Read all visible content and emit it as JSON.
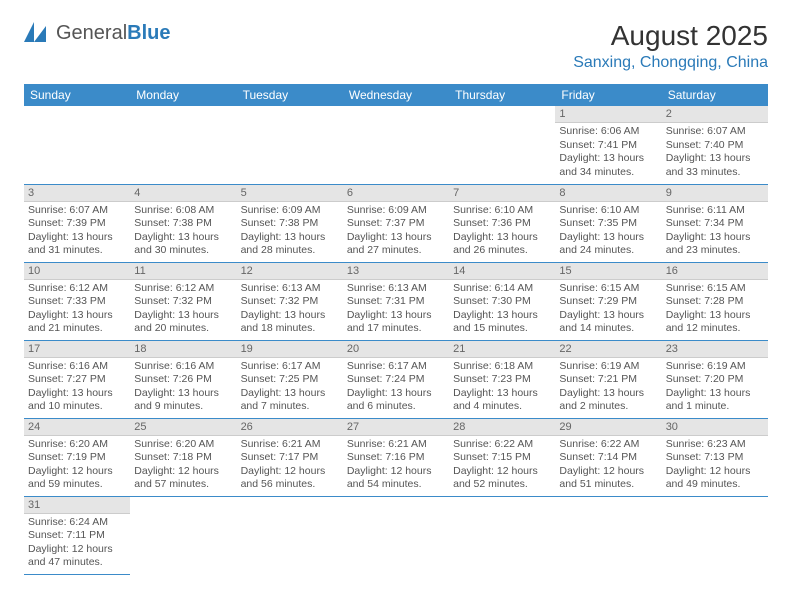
{
  "brand": {
    "general": "General",
    "blue": "Blue"
  },
  "header": {
    "title": "August 2025",
    "location": "Sanxing, Chongqing, China"
  },
  "colors": {
    "header_bg": "#3b8bc9",
    "header_text": "#ffffff",
    "daynum_bg": "#e5e5e5",
    "divider": "#3b8bc9",
    "location_color": "#2a7ab8"
  },
  "weekdays": [
    "Sunday",
    "Monday",
    "Tuesday",
    "Wednesday",
    "Thursday",
    "Friday",
    "Saturday"
  ],
  "weeks": [
    [
      null,
      null,
      null,
      null,
      null,
      {
        "n": "1",
        "sr": "Sunrise: 6:06 AM",
        "ss": "Sunset: 7:41 PM",
        "dl": "Daylight: 13 hours and 34 minutes."
      },
      {
        "n": "2",
        "sr": "Sunrise: 6:07 AM",
        "ss": "Sunset: 7:40 PM",
        "dl": "Daylight: 13 hours and 33 minutes."
      }
    ],
    [
      {
        "n": "3",
        "sr": "Sunrise: 6:07 AM",
        "ss": "Sunset: 7:39 PM",
        "dl": "Daylight: 13 hours and 31 minutes."
      },
      {
        "n": "4",
        "sr": "Sunrise: 6:08 AM",
        "ss": "Sunset: 7:38 PM",
        "dl": "Daylight: 13 hours and 30 minutes."
      },
      {
        "n": "5",
        "sr": "Sunrise: 6:09 AM",
        "ss": "Sunset: 7:38 PM",
        "dl": "Daylight: 13 hours and 28 minutes."
      },
      {
        "n": "6",
        "sr": "Sunrise: 6:09 AM",
        "ss": "Sunset: 7:37 PM",
        "dl": "Daylight: 13 hours and 27 minutes."
      },
      {
        "n": "7",
        "sr": "Sunrise: 6:10 AM",
        "ss": "Sunset: 7:36 PM",
        "dl": "Daylight: 13 hours and 26 minutes."
      },
      {
        "n": "8",
        "sr": "Sunrise: 6:10 AM",
        "ss": "Sunset: 7:35 PM",
        "dl": "Daylight: 13 hours and 24 minutes."
      },
      {
        "n": "9",
        "sr": "Sunrise: 6:11 AM",
        "ss": "Sunset: 7:34 PM",
        "dl": "Daylight: 13 hours and 23 minutes."
      }
    ],
    [
      {
        "n": "10",
        "sr": "Sunrise: 6:12 AM",
        "ss": "Sunset: 7:33 PM",
        "dl": "Daylight: 13 hours and 21 minutes."
      },
      {
        "n": "11",
        "sr": "Sunrise: 6:12 AM",
        "ss": "Sunset: 7:32 PM",
        "dl": "Daylight: 13 hours and 20 minutes."
      },
      {
        "n": "12",
        "sr": "Sunrise: 6:13 AM",
        "ss": "Sunset: 7:32 PM",
        "dl": "Daylight: 13 hours and 18 minutes."
      },
      {
        "n": "13",
        "sr": "Sunrise: 6:13 AM",
        "ss": "Sunset: 7:31 PM",
        "dl": "Daylight: 13 hours and 17 minutes."
      },
      {
        "n": "14",
        "sr": "Sunrise: 6:14 AM",
        "ss": "Sunset: 7:30 PM",
        "dl": "Daylight: 13 hours and 15 minutes."
      },
      {
        "n": "15",
        "sr": "Sunrise: 6:15 AM",
        "ss": "Sunset: 7:29 PM",
        "dl": "Daylight: 13 hours and 14 minutes."
      },
      {
        "n": "16",
        "sr": "Sunrise: 6:15 AM",
        "ss": "Sunset: 7:28 PM",
        "dl": "Daylight: 13 hours and 12 minutes."
      }
    ],
    [
      {
        "n": "17",
        "sr": "Sunrise: 6:16 AM",
        "ss": "Sunset: 7:27 PM",
        "dl": "Daylight: 13 hours and 10 minutes."
      },
      {
        "n": "18",
        "sr": "Sunrise: 6:16 AM",
        "ss": "Sunset: 7:26 PM",
        "dl": "Daylight: 13 hours and 9 minutes."
      },
      {
        "n": "19",
        "sr": "Sunrise: 6:17 AM",
        "ss": "Sunset: 7:25 PM",
        "dl": "Daylight: 13 hours and 7 minutes."
      },
      {
        "n": "20",
        "sr": "Sunrise: 6:17 AM",
        "ss": "Sunset: 7:24 PM",
        "dl": "Daylight: 13 hours and 6 minutes."
      },
      {
        "n": "21",
        "sr": "Sunrise: 6:18 AM",
        "ss": "Sunset: 7:23 PM",
        "dl": "Daylight: 13 hours and 4 minutes."
      },
      {
        "n": "22",
        "sr": "Sunrise: 6:19 AM",
        "ss": "Sunset: 7:21 PM",
        "dl": "Daylight: 13 hours and 2 minutes."
      },
      {
        "n": "23",
        "sr": "Sunrise: 6:19 AM",
        "ss": "Sunset: 7:20 PM",
        "dl": "Daylight: 13 hours and 1 minute."
      }
    ],
    [
      {
        "n": "24",
        "sr": "Sunrise: 6:20 AM",
        "ss": "Sunset: 7:19 PM",
        "dl": "Daylight: 12 hours and 59 minutes."
      },
      {
        "n": "25",
        "sr": "Sunrise: 6:20 AM",
        "ss": "Sunset: 7:18 PM",
        "dl": "Daylight: 12 hours and 57 minutes."
      },
      {
        "n": "26",
        "sr": "Sunrise: 6:21 AM",
        "ss": "Sunset: 7:17 PM",
        "dl": "Daylight: 12 hours and 56 minutes."
      },
      {
        "n": "27",
        "sr": "Sunrise: 6:21 AM",
        "ss": "Sunset: 7:16 PM",
        "dl": "Daylight: 12 hours and 54 minutes."
      },
      {
        "n": "28",
        "sr": "Sunrise: 6:22 AM",
        "ss": "Sunset: 7:15 PM",
        "dl": "Daylight: 12 hours and 52 minutes."
      },
      {
        "n": "29",
        "sr": "Sunrise: 6:22 AM",
        "ss": "Sunset: 7:14 PM",
        "dl": "Daylight: 12 hours and 51 minutes."
      },
      {
        "n": "30",
        "sr": "Sunrise: 6:23 AM",
        "ss": "Sunset: 7:13 PM",
        "dl": "Daylight: 12 hours and 49 minutes."
      }
    ],
    [
      {
        "n": "31",
        "sr": "Sunrise: 6:24 AM",
        "ss": "Sunset: 7:11 PM",
        "dl": "Daylight: 12 hours and 47 minutes."
      },
      null,
      null,
      null,
      null,
      null,
      null
    ]
  ]
}
